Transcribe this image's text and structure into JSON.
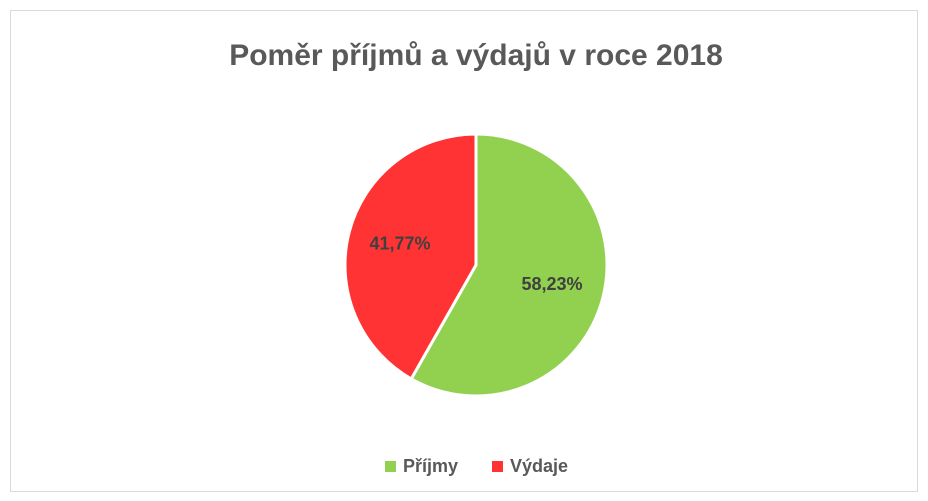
{
  "chart_data": {
    "type": "pie",
    "title": "Poměr příjmů a výdajů v roce 2018",
    "categories": [
      "Příjmy",
      "Výdaje"
    ],
    "values": [
      58.23,
      41.77
    ],
    "value_labels": [
      "58,23%",
      "41,77%"
    ],
    "colors": [
      "#92d050",
      "#ff3333"
    ],
    "legend": "bottom"
  }
}
